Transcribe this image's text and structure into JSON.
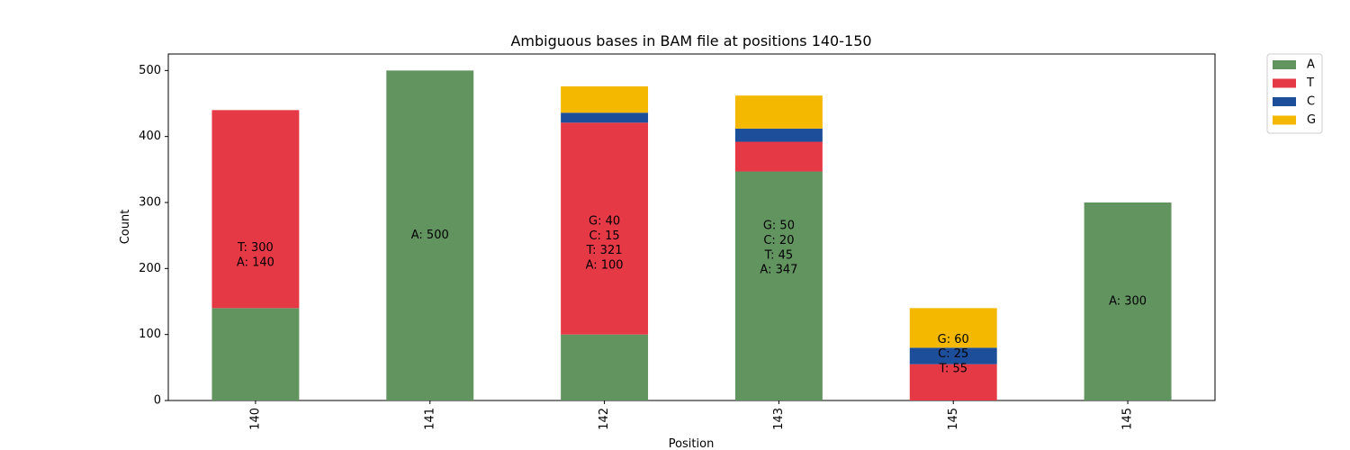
{
  "chart_data": {
    "type": "bar",
    "stacked": true,
    "title": "Ambiguous bases in BAM file at positions 140-150",
    "xlabel": "Position",
    "ylabel": "Count",
    "ylim": [
      0,
      525
    ],
    "yticks": [
      0,
      100,
      200,
      300,
      400,
      500
    ],
    "categories": [
      "140",
      "141",
      "142",
      "143",
      "145",
      "145"
    ],
    "series": [
      {
        "name": "A",
        "color": "#629460",
        "values": [
          140,
          500,
          100,
          347,
          0,
          300
        ]
      },
      {
        "name": "T",
        "color": "#e63946",
        "values": [
          300,
          0,
          321,
          45,
          55,
          0
        ]
      },
      {
        "name": "C",
        "color": "#1d4e99",
        "values": [
          0,
          0,
          15,
          20,
          25,
          0
        ]
      },
      {
        "name": "G",
        "color": "#f4b800",
        "values": [
          0,
          0,
          40,
          50,
          60,
          0
        ]
      }
    ],
    "bar_labels": [
      [
        "T: 300",
        "A: 140"
      ],
      [
        "A: 500"
      ],
      [
        "G: 40",
        "C: 15",
        "T: 321",
        "A: 100"
      ],
      [
        "G: 50",
        "C: 20",
        "T: 45",
        "A: 347"
      ],
      [
        "G: 60",
        "C: 25",
        "T: 55"
      ],
      [
        "A: 300"
      ]
    ],
    "legend_placement": "outside-top-right",
    "grid": false
  }
}
